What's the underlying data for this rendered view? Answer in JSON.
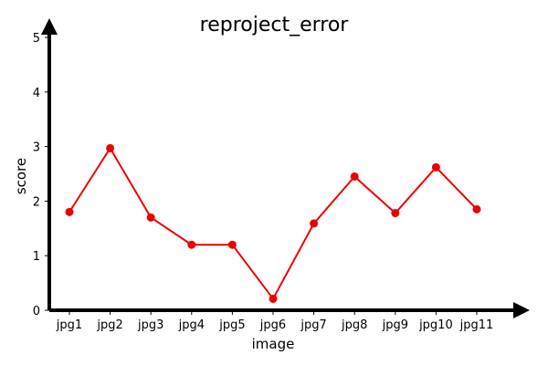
{
  "chart_data": {
    "type": "line",
    "title": "reproject_error",
    "xlabel": "image",
    "ylabel": "score",
    "categories": [
      "jpg1",
      "jpg2",
      "jpg3",
      "jpg4",
      "jpg5",
      "jpg6",
      "jpg7",
      "jpg8",
      "jpg9",
      "jpg10",
      "jpg11"
    ],
    "series": [
      {
        "values": [
          1.8,
          2.97,
          1.7,
          1.2,
          1.2,
          0.21,
          1.59,
          2.45,
          1.78,
          2.62,
          1.85
        ],
        "color": "#ee0000",
        "marker": "circle"
      }
    ],
    "ylim": [
      0,
      5
    ],
    "yticks": [
      0,
      1,
      2,
      3,
      4,
      5
    ],
    "grid": false,
    "axis_color": "#000000"
  }
}
